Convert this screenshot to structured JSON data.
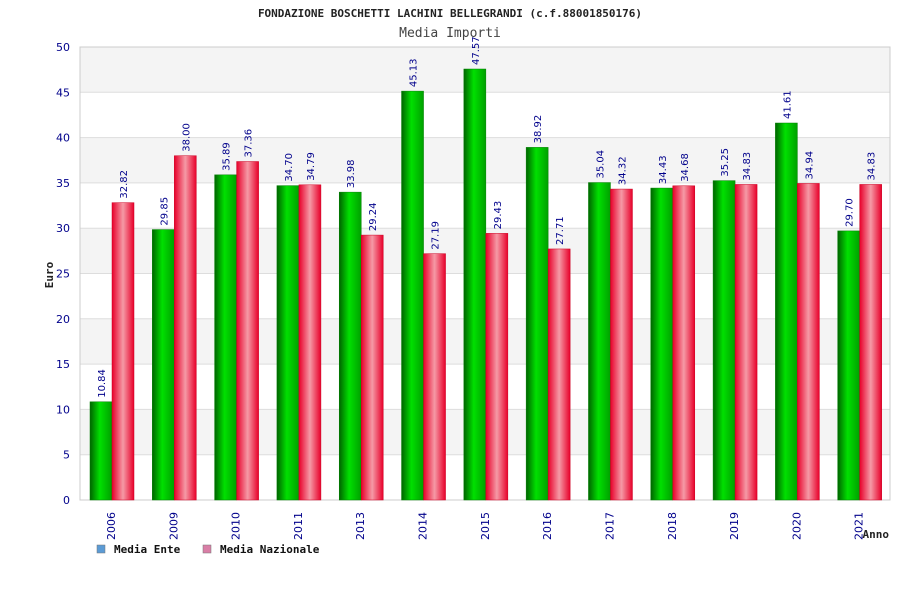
{
  "chart_data": {
    "type": "bar",
    "title": "FONDAZIONE BOSCHETTI LACHINI BELLEGRANDI (c.f.88001850176)",
    "subtitle": "Media Importi",
    "xlabel": "Anno",
    "ylabel": "Euro",
    "ylim": [
      0,
      50
    ],
    "yticks": [
      0,
      5,
      10,
      15,
      20,
      25,
      30,
      35,
      40,
      45,
      50
    ],
    "grid": true,
    "legend_position": "bottom-left",
    "categories": [
      "2006",
      "2009",
      "2010",
      "2011",
      "2013",
      "2014",
      "2015",
      "2016",
      "2017",
      "2018",
      "2019",
      "2020",
      "2021"
    ],
    "series": [
      {
        "name": "Media Ente",
        "color": "#00c000",
        "legend_color": "#5b9bd5",
        "values": [
          10.84,
          29.85,
          35.89,
          34.7,
          33.98,
          45.13,
          47.57,
          38.92,
          35.04,
          34.43,
          35.25,
          41.61,
          29.7
        ],
        "labels": [
          "10.84",
          "29.85",
          "35.89",
          "34.70",
          "33.98",
          "45.13",
          "47.57",
          "38.92",
          "35.04",
          "34.43",
          "35.25",
          "41.61",
          "29.70"
        ]
      },
      {
        "name": "Media Nazionale",
        "color": "#e8102a",
        "legend_color": "#d97ea6",
        "values": [
          32.82,
          38.0,
          37.36,
          34.79,
          29.24,
          27.19,
          29.43,
          27.71,
          34.32,
          34.68,
          34.83,
          34.94,
          34.83
        ],
        "labels": [
          "32.82",
          "38.00",
          "37.36",
          "34.79",
          "29.24",
          "27.19",
          "29.43",
          "27.71",
          "34.32",
          "34.68",
          "34.83",
          "34.94",
          "34.83"
        ]
      }
    ]
  }
}
